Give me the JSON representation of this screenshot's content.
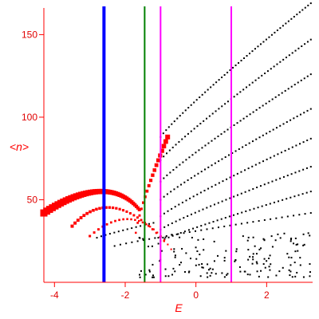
{
  "chart_data": {
    "type": "scatter",
    "title": "",
    "xlabel": "E",
    "ylabel": "<n>",
    "xlim": [
      -4.3,
      3.3
    ],
    "ylim": [
      0,
      170
    ],
    "grid": false,
    "colors": {
      "axis": "#ff0000",
      "tick_text": "#e00000",
      "red_points": "#ff0000",
      "black_points": "#000000",
      "blue_line": "#0000ff",
      "green_line": "#008000",
      "magenta_line": "#ff00ff"
    },
    "xticks": [
      {
        "value": -4,
        "label": "-4"
      },
      {
        "value": -2,
        "label": "-2"
      },
      {
        "value": 0,
        "label": "0"
      },
      {
        "value": 2,
        "label": "2"
      }
    ],
    "yticks": [
      {
        "value": 50,
        "label": "50"
      },
      {
        "value": 100,
        "label": "100"
      },
      {
        "value": 150,
        "label": "150"
      }
    ],
    "vertical_lines": [
      {
        "x": -2.6,
        "color": "#0000ff",
        "weight": "thick"
      },
      {
        "x": -1.45,
        "color": "#008000",
        "weight": "thin"
      },
      {
        "x": -1.0,
        "color": "#ff00ff",
        "weight": "thin"
      },
      {
        "x": 1.0,
        "color": "#ff00ff",
        "weight": "thin"
      }
    ],
    "red_curves": [
      {
        "from": [
          -4.3,
          42
        ],
        "to": [
          -1.6,
          44
        ],
        "peak": [
          -2.5,
          55
        ],
        "count": 45,
        "size_from": 9,
        "size_to": 4
      },
      {
        "from": [
          -3.5,
          34
        ],
        "to": [
          -0.9,
          25
        ],
        "peak": [
          -2.4,
          45
        ],
        "count": 28,
        "size_from": 4,
        "size_to": 2.5
      },
      {
        "from": [
          -3.0,
          28
        ],
        "to": [
          -0.7,
          20
        ],
        "peak": [
          -1.7,
          38
        ],
        "count": 22,
        "size_from": 3,
        "size_to": 2
      },
      {
        "from": [
          -1.7,
          30
        ],
        "to": [
          -0.8,
          88
        ],
        "peak": null,
        "count": 18,
        "size_from": 2.5,
        "size_to": 6
      }
    ],
    "black_series": [
      {
        "from": [
          -1.0,
          88
        ],
        "to": [
          3.25,
          169
        ],
        "count": 55
      },
      {
        "from": [
          -1.0,
          74
        ],
        "to": [
          3.25,
          147
        ],
        "count": 50
      },
      {
        "from": [
          -1.0,
          61
        ],
        "to": [
          3.25,
          126
        ],
        "count": 48
      },
      {
        "from": [
          -1.0,
          50
        ],
        "to": [
          3.25,
          105
        ],
        "count": 45
      },
      {
        "from": [
          -1.0,
          40
        ],
        "to": [
          3.25,
          87
        ],
        "count": 42
      },
      {
        "from": [
          -1.0,
          32
        ],
        "to": [
          3.25,
          70
        ],
        "count": 40
      },
      {
        "from": [
          -1.0,
          25
        ],
        "to": [
          3.25,
          55
        ],
        "count": 38
      },
      {
        "from": [
          -2.3,
          22
        ],
        "to": [
          3.25,
          42
        ],
        "count": 35
      },
      {
        "from": [
          -2.8,
          27
        ],
        "to": [
          -1.2,
          36
        ],
        "count": 14
      }
    ],
    "black_cloud": {
      "x_range": [
        -1.6,
        3.25
      ],
      "y_range": [
        3,
        30
      ],
      "count": 160
    }
  }
}
